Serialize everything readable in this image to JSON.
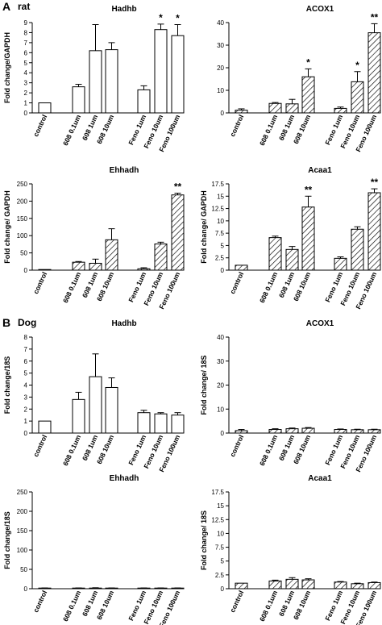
{
  "panels": [
    {
      "letter": "A",
      "species": "rat"
    },
    {
      "letter": "B",
      "species": "Dog"
    }
  ],
  "colors": {
    "axis": "#000000",
    "bar_fill": "#ffffff",
    "hatch": "#000000"
  },
  "chart_data": [
    {
      "type": "bar",
      "panel": "A",
      "title": "Hadhb",
      "ylabel": "Fold change/GAPDH",
      "ylim": [
        0,
        9
      ],
      "yticks": [
        0,
        1,
        2,
        3,
        4,
        5,
        6,
        7,
        8,
        9
      ],
      "hatched": false,
      "categories": [
        "control",
        "608 0.1um",
        "608 1um",
        "608 10um",
        "Feno 1um",
        "Feno 10um",
        "Feno 100um"
      ],
      "values": [
        1.0,
        2.6,
        6.2,
        6.3,
        2.3,
        8.3,
        7.7
      ],
      "errors": [
        0,
        0.25,
        2.6,
        0.7,
        0.4,
        0.55,
        1.1
      ],
      "annotations": [
        "",
        "",
        "",
        "",
        "",
        "*",
        "*"
      ]
    },
    {
      "type": "bar",
      "panel": "A",
      "title": "ACOX1",
      "ylabel": "",
      "ylim": [
        0,
        40
      ],
      "yticks": [
        0,
        10,
        20,
        30,
        40
      ],
      "hatched": true,
      "categories": [
        "control",
        "608 0.1um",
        "608 1um",
        "608 10um",
        "Feno 1um",
        "Feno 10um",
        "Feno 100um"
      ],
      "values": [
        1.2,
        4.2,
        4.0,
        16.0,
        2.0,
        13.8,
        35.5
      ],
      "errors": [
        0.6,
        0.4,
        2.0,
        3.5,
        0.6,
        4.5,
        4.0
      ],
      "annotations": [
        "",
        "",
        "",
        "*",
        "",
        "*",
        "**"
      ]
    },
    {
      "type": "bar",
      "panel": "A",
      "title": "Ehhadh",
      "ylabel": "Fold change/ GAPDH",
      "ylim": [
        0,
        250
      ],
      "yticks": [
        0,
        50,
        100,
        150,
        200,
        250
      ],
      "hatched": true,
      "categories": [
        "control",
        "608 0.1um",
        "608 1um",
        "608 10um",
        "Feno 1um",
        "Feno 10um",
        "Feno 100um"
      ],
      "values": [
        1,
        23,
        20,
        88,
        4,
        76,
        218
      ],
      "errors": [
        0,
        2,
        12,
        32,
        3,
        5,
        5
      ],
      "annotations": [
        "",
        "",
        "",
        "",
        "",
        "",
        "**"
      ]
    },
    {
      "type": "bar",
      "panel": "A",
      "title": "Acaa1",
      "ylabel": "Fold change/ GAPDH",
      "ylim": [
        0,
        17.5
      ],
      "yticks": [
        0,
        2.5,
        5,
        7.5,
        10,
        12.5,
        15,
        17.5
      ],
      "hatched": true,
      "categories": [
        "control",
        "608 0.1um",
        "608 1um",
        "608 10um",
        "Feno 1um",
        "Feno 10um",
        "Feno 100um"
      ],
      "values": [
        1.0,
        6.6,
        4.2,
        12.8,
        2.4,
        8.3,
        15.7
      ],
      "errors": [
        0,
        0.3,
        0.6,
        2.2,
        0.3,
        0.5,
        0.8
      ],
      "annotations": [
        "",
        "",
        "",
        "**",
        "",
        "",
        "**"
      ]
    },
    {
      "type": "bar",
      "panel": "B",
      "title": "Hadhb",
      "ylabel": "Fold change/18S",
      "ylim": [
        0,
        8
      ],
      "yticks": [
        0,
        1,
        2,
        3,
        4,
        5,
        6,
        7,
        8
      ],
      "hatched": false,
      "categories": [
        "control",
        "608 0.1um",
        "608 1um",
        "608 10um",
        "Feno 1um",
        "Feno 10um",
        "Feno 100um"
      ],
      "values": [
        1.0,
        2.8,
        4.7,
        3.8,
        1.7,
        1.6,
        1.5
      ],
      "errors": [
        0,
        0.6,
        1.9,
        0.8,
        0.2,
        0.1,
        0.2
      ],
      "annotations": [
        "",
        "",
        "",
        "",
        "",
        "",
        ""
      ]
    },
    {
      "type": "bar",
      "panel": "B",
      "title": "ACOX1",
      "ylabel": "Fold change/ 18S",
      "ylim": [
        0,
        40
      ],
      "yticks": [
        0,
        10,
        20,
        30,
        40
      ],
      "hatched": true,
      "categories": [
        "control",
        "608 0.1um",
        "608 1um",
        "608 10um",
        "Feno 1um",
        "Feno 10um",
        "Feno 100um"
      ],
      "values": [
        1.0,
        1.5,
        1.8,
        2.0,
        1.5,
        1.4,
        1.4
      ],
      "errors": [
        0.5,
        0.3,
        0.3,
        0.3,
        0.2,
        0.2,
        0.2
      ],
      "annotations": [
        "",
        "",
        "",
        "",
        "",
        "",
        ""
      ]
    },
    {
      "type": "bar",
      "panel": "B",
      "title": "Ehhadh",
      "ylabel": "Fold change/18S",
      "ylim": [
        0,
        250
      ],
      "yticks": [
        0,
        50,
        100,
        150,
        200,
        250
      ],
      "hatched": true,
      "categories": [
        "control",
        "608 0.1um",
        "608 1um",
        "608 10um",
        "Feno 1um",
        "Feno 10um",
        "Feno 100um"
      ],
      "values": [
        1,
        1,
        1.5,
        1,
        1,
        1,
        1
      ],
      "errors": [
        1,
        1,
        1,
        1,
        1,
        1,
        1
      ],
      "annotations": [
        "",
        "",
        "",
        "",
        "",
        "",
        ""
      ]
    },
    {
      "type": "bar",
      "panel": "B",
      "title": "Acaa1",
      "ylabel": "Fold change/ 18S",
      "ylim": [
        0,
        17.5
      ],
      "yticks": [
        0,
        2.5,
        5,
        7.5,
        10,
        12.5,
        15,
        17.5
      ],
      "hatched": true,
      "categories": [
        "control",
        "608 0.1um",
        "608 1um",
        "608 10um",
        "Feno 1um",
        "Feno 10um",
        "Feno 100um"
      ],
      "values": [
        1.0,
        1.4,
        1.7,
        1.6,
        1.2,
        0.9,
        1.1
      ],
      "errors": [
        0,
        0.15,
        0.3,
        0.2,
        0.1,
        0.1,
        0.1
      ],
      "annotations": [
        "",
        "",
        "",
        "",
        "",
        "",
        ""
      ]
    }
  ]
}
